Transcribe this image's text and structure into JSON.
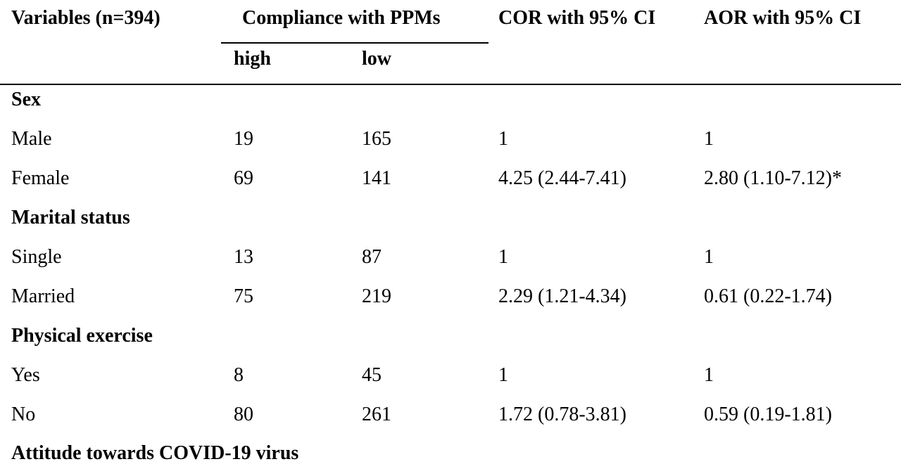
{
  "header": {
    "variables": "Variables (n=394)",
    "compliance": "Compliance with PPMs",
    "high": "high",
    "low": "low",
    "cor": "COR with 95% CI",
    "aor": "AOR with 95% CI"
  },
  "rows": [
    {
      "type": "group",
      "label": "Sex"
    },
    {
      "type": "data",
      "label": "Male",
      "high": "19",
      "low": "165",
      "cor": "1",
      "aor": "1"
    },
    {
      "type": "data",
      "label": "Female",
      "high": "69",
      "low": "141",
      "cor": "4.25 (2.44-7.41)",
      "aor": "2.80 (1.10-7.12)*"
    },
    {
      "type": "group",
      "label": "Marital status"
    },
    {
      "type": "data",
      "label": "Single",
      "high": "13",
      "low": "87",
      "cor": "1",
      "aor": "1"
    },
    {
      "type": "data",
      "label": "Married",
      "high": "75",
      "low": "219",
      "cor": "2.29 (1.21-4.34)",
      "aor": "0.61 (0.22-1.74)"
    },
    {
      "type": "group",
      "label": "Physical exercise"
    },
    {
      "type": "data",
      "label": "Yes",
      "high": "8",
      "low": "45",
      "cor": "1",
      "aor": "1"
    },
    {
      "type": "data",
      "label": "No",
      "high": "80",
      "low": "261",
      "cor": "1.72 (0.78-3.81)",
      "aor": "0.59 (0.19-1.81)"
    },
    {
      "type": "group",
      "label": "Attitude towards COVID-19 virus"
    }
  ]
}
